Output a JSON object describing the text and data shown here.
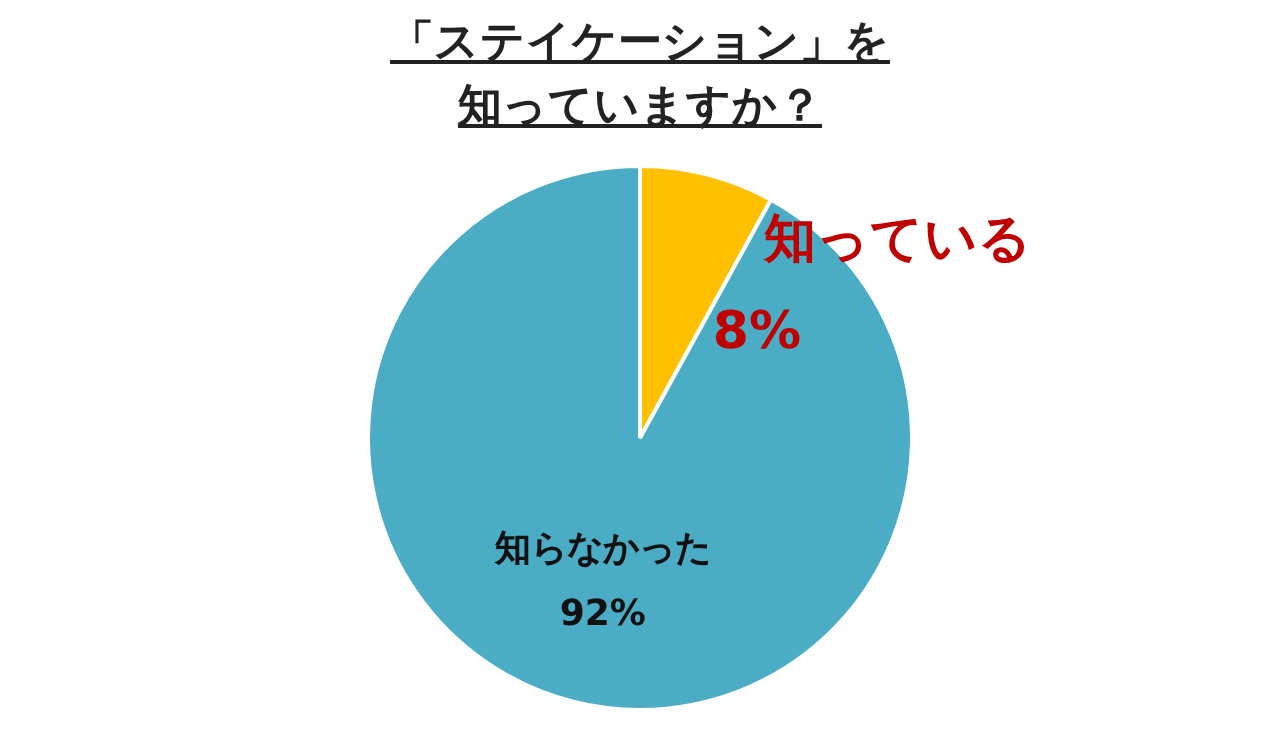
{
  "chart_data": {
    "type": "pie",
    "title": "「ステイケーション」を知っていますか？",
    "categories": [
      "知っている",
      "知らなかった"
    ],
    "values": [
      8,
      92
    ],
    "value_labels": [
      "8%",
      "92%"
    ],
    "colors": [
      "#ffc000",
      "#4bacc6"
    ],
    "legend": false
  }
}
